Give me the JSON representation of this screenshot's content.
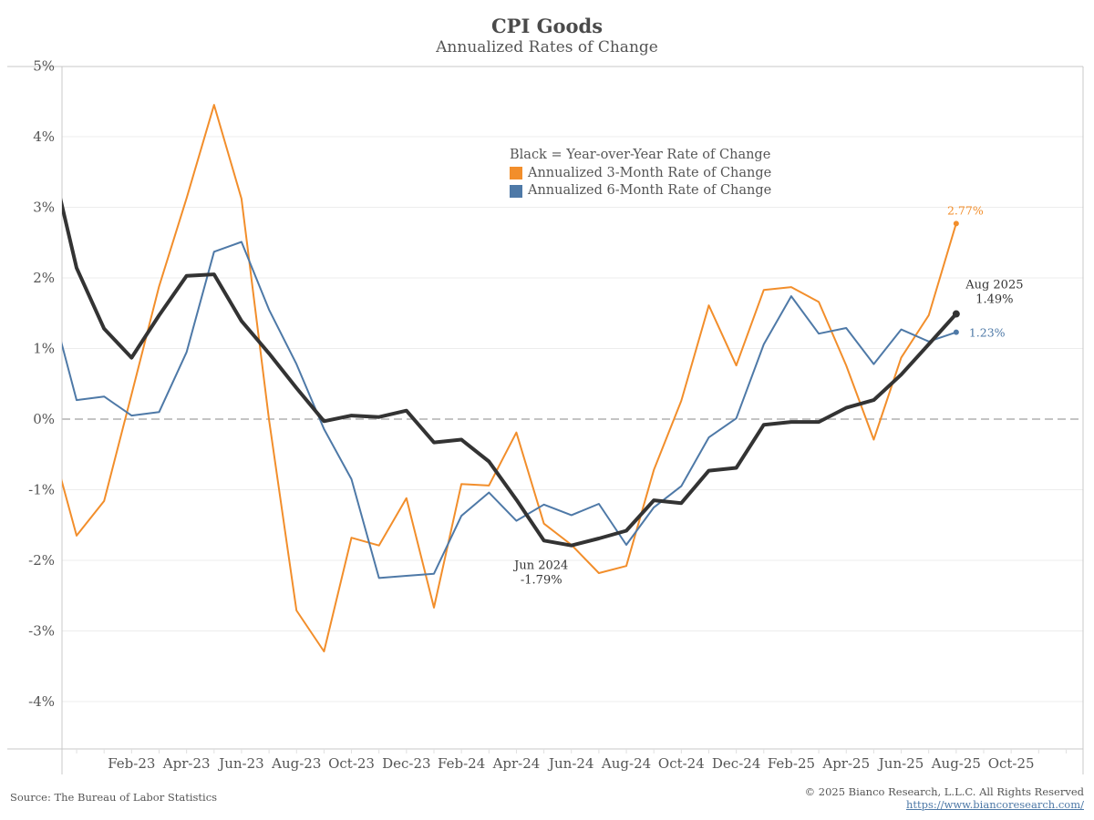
{
  "header": {
    "title": "CPI Goods",
    "subtitle": "Annualized Rates of Change"
  },
  "legend": {
    "note": "Black = Year-over-Year Rate of Change",
    "items": [
      {
        "label": "Annualized 3-Month Rate of Change",
        "color": "#f28e2b"
      },
      {
        "label": "Annualized 6-Month Rate of Change",
        "color": "#4e79a7"
      }
    ]
  },
  "footer": {
    "source": "Source: The Bureau of Labor Statistics",
    "copyright": "© 2025 Bianco Research, L.L.C. All Rights Reserved",
    "url": "https://www.biancoresearch.com/"
  },
  "chart_data": {
    "type": "line",
    "title": "CPI Goods",
    "subtitle": "Annualized Rates of Change",
    "xlabel": "",
    "ylabel": "",
    "ylim": [
      -4.8,
      5.0
    ],
    "yticks": [
      5,
      4,
      3,
      2,
      1,
      0,
      -1,
      -2,
      -3,
      -4
    ],
    "ytick_labels": [
      "5%",
      "4%",
      "3%",
      "2%",
      "1%",
      "0%",
      "-1%",
      "-2%",
      "-3%",
      "-4%"
    ],
    "xlim": [
      "Nov-22 (partial)",
      "Nov-25"
    ],
    "xtick_labels": [
      "Feb-23",
      "Apr-23",
      "Jun-23",
      "Aug-23",
      "Oct-23",
      "Dec-23",
      "Feb-24",
      "Apr-24",
      "Jun-24",
      "Aug-24",
      "Oct-24",
      "Dec-24",
      "Feb-25",
      "Apr-25",
      "Jun-25",
      "Aug-25",
      "Oct-25"
    ],
    "grid": true,
    "zero_line": "dashed",
    "legend_position": "top-center",
    "x": [
      "Nov-22",
      "Dec-22",
      "Jan-23",
      "Feb-23",
      "Mar-23",
      "Apr-23",
      "May-23",
      "Jun-23",
      "Jul-23",
      "Aug-23",
      "Sep-23",
      "Oct-23",
      "Nov-23",
      "Dec-23",
      "Jan-24",
      "Feb-24",
      "Mar-24",
      "Apr-24",
      "May-24",
      "Jun-24",
      "Jul-24",
      "Aug-24",
      "Sep-24",
      "Oct-24",
      "Nov-24",
      "Dec-24",
      "Jan-25",
      "Feb-25",
      "Mar-25",
      "Apr-25",
      "May-25",
      "Jun-25",
      "Jul-25",
      "Aug-25"
    ],
    "series": [
      {
        "name": "Annualized 3-Month Rate of Change",
        "color": "#f28e2b",
        "values": [
          -0.22,
          -1.65,
          -1.16,
          0.35,
          1.88,
          3.13,
          4.45,
          3.12,
          -0.01,
          -2.71,
          -3.29,
          -1.68,
          -1.79,
          -1.12,
          -2.67,
          -0.92,
          -0.94,
          -0.19,
          -1.48,
          -1.78,
          -2.18,
          -2.08,
          -0.72,
          0.26,
          1.61,
          0.76,
          1.83,
          1.87,
          1.66,
          0.76,
          -0.29,
          0.87,
          1.47,
          2.77
        ],
        "end_label": "2.77%"
      },
      {
        "name": "Annualized 6-Month Rate of Change",
        "color": "#4e79a7",
        "values": [
          1.74,
          0.27,
          0.32,
          0.05,
          0.1,
          0.95,
          2.37,
          2.51,
          1.55,
          0.78,
          -0.14,
          -0.85,
          -2.25,
          -2.22,
          -2.19,
          -1.37,
          -1.04,
          -1.44,
          -1.21,
          -1.36,
          -1.2,
          -1.78,
          -1.25,
          -0.95,
          -0.26,
          0.01,
          1.06,
          1.74,
          1.21,
          1.29,
          0.78,
          1.27,
          1.1,
          1.23
        ],
        "end_label": "1.23%"
      },
      {
        "name": "Year-over-Year Rate of Change",
        "color": "#333333",
        "values": [
          3.8,
          2.14,
          1.28,
          0.87,
          1.47,
          2.03,
          2.05,
          1.39,
          0.93,
          0.44,
          -0.03,
          0.05,
          0.03,
          0.12,
          -0.33,
          -0.29,
          -0.6,
          -1.14,
          -1.72,
          -1.79,
          -1.69,
          -1.58,
          -1.15,
          -1.19,
          -0.73,
          -0.69,
          -0.08,
          -0.04,
          -0.04,
          0.16,
          0.27,
          0.63,
          1.06,
          1.49
        ]
      }
    ],
    "annotations": [
      {
        "series": "Year-over-Year Rate of Change",
        "x": "Aug-25",
        "line1": "Aug 2025",
        "line2": "1.49%"
      },
      {
        "series": "Year-over-Year Rate of Change",
        "x": "Jun-24",
        "line1": "Jun 2024",
        "line2": "-1.79%"
      }
    ]
  }
}
